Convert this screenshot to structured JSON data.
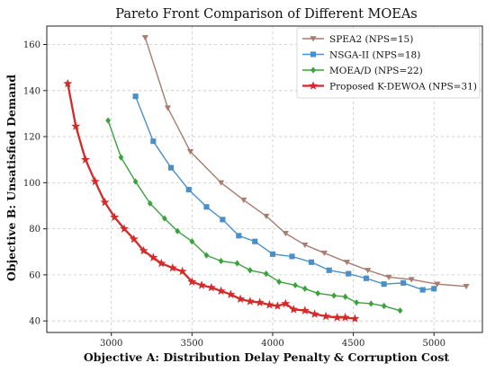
{
  "chart_data": {
    "type": "line",
    "title": "Pareto Front Comparison of Different MOEAs",
    "xlabel": "Objective A: Distribution Delay Penalty & Corruption Cost",
    "ylabel": "Objective B: Unsatisfied Demand",
    "xlim": [
      2600,
      5300
    ],
    "ylim": [
      35,
      168
    ],
    "xticks": [
      3000,
      3500,
      4000,
      4500,
      5000
    ],
    "yticks": [
      40,
      60,
      80,
      100,
      120,
      140,
      160
    ],
    "grid": true,
    "legend_position": "top-right",
    "series": [
      {
        "name": "SPEA2 (NPS=15)",
        "color": "#a87c6f",
        "marker": "triangle-down",
        "points": [
          [
            3210,
            163
          ],
          [
            3350,
            132.5
          ],
          [
            3490,
            113.5
          ],
          [
            3680,
            100
          ],
          [
            3820,
            92.5
          ],
          [
            3960,
            85.5
          ],
          [
            4080,
            78
          ],
          [
            4200,
            73
          ],
          [
            4320,
            69.5
          ],
          [
            4460,
            65.5
          ],
          [
            4590,
            62
          ],
          [
            4720,
            59
          ],
          [
            4860,
            58
          ],
          [
            5020,
            56
          ],
          [
            5200,
            55
          ]
        ]
      },
      {
        "name": "NSGA-II (NPS=18)",
        "color": "#4a90c8",
        "marker": "square",
        "points": [
          [
            3150,
            137.5
          ],
          [
            3260,
            118
          ],
          [
            3370,
            106.5
          ],
          [
            3480,
            97
          ],
          [
            3590,
            89.5
          ],
          [
            3690,
            84
          ],
          [
            3790,
            77
          ],
          [
            3890,
            74.5
          ],
          [
            4000,
            69
          ],
          [
            4120,
            68
          ],
          [
            4240,
            65.5
          ],
          [
            4350,
            62
          ],
          [
            4470,
            60.5
          ],
          [
            4580,
            58.5
          ],
          [
            4690,
            56
          ],
          [
            4810,
            56.5
          ],
          [
            4930,
            53.5
          ],
          [
            5000,
            54
          ]
        ]
      },
      {
        "name": "MOEA/D (NPS=22)",
        "color": "#3aa33c",
        "marker": "diamond",
        "points": [
          [
            2980,
            127
          ],
          [
            3060,
            111
          ],
          [
            3150,
            100.5
          ],
          [
            3240,
            91
          ],
          [
            3330,
            84.5
          ],
          [
            3410,
            79
          ],
          [
            3500,
            74.5
          ],
          [
            3590,
            68.5
          ],
          [
            3680,
            66
          ],
          [
            3780,
            65
          ],
          [
            3860,
            62
          ],
          [
            3960,
            60.5
          ],
          [
            4040,
            57
          ],
          [
            4140,
            55.5
          ],
          [
            4200,
            54
          ],
          [
            4280,
            52
          ],
          [
            4380,
            51
          ],
          [
            4450,
            50.5
          ],
          [
            4520,
            48
          ],
          [
            4610,
            47.5
          ],
          [
            4690,
            46.5
          ],
          [
            4790,
            44.5
          ]
        ]
      },
      {
        "name": "Proposed K-DEWOA (NPS=31)",
        "color": "#d42a2a",
        "marker": "star",
        "points": [
          [
            2730,
            143
          ],
          [
            2780,
            124.5
          ],
          [
            2840,
            110
          ],
          [
            2900,
            100.5
          ],
          [
            2960,
            91.5
          ],
          [
            3020,
            85
          ],
          [
            3080,
            80
          ],
          [
            3140,
            75.5
          ],
          [
            3200,
            70.5
          ],
          [
            3260,
            67.5
          ],
          [
            3310,
            65
          ],
          [
            3380,
            63
          ],
          [
            3440,
            61.5
          ],
          [
            3500,
            57
          ],
          [
            3560,
            55.5
          ],
          [
            3620,
            54.5
          ],
          [
            3680,
            53
          ],
          [
            3740,
            51.5
          ],
          [
            3800,
            49.5
          ],
          [
            3860,
            48.5
          ],
          [
            3920,
            48
          ],
          [
            3980,
            47
          ],
          [
            4030,
            46.5
          ],
          [
            4080,
            47.5
          ],
          [
            4130,
            45
          ],
          [
            4200,
            44.5
          ],
          [
            4260,
            43
          ],
          [
            4330,
            42
          ],
          [
            4400,
            41.5
          ],
          [
            4450,
            41.5
          ],
          [
            4510,
            41
          ]
        ]
      }
    ]
  }
}
